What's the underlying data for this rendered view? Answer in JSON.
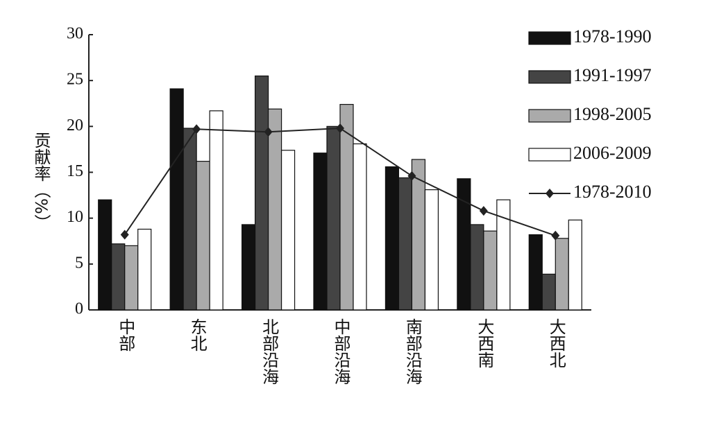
{
  "chart_data": {
    "type": "bar",
    "y_label": "贡献率（%）",
    "categories": [
      "中部",
      "东北",
      "北部沿海",
      "中部沿海",
      "南部沿海",
      "大西南",
      "大西北"
    ],
    "series": [
      {
        "name": "1978-1990",
        "color": "#111111",
        "values": [
          12,
          24.1,
          9.3,
          17.1,
          15.6,
          14.3,
          8.2
        ]
      },
      {
        "name": "1991-1997",
        "color": "#444444",
        "values": [
          7.2,
          19.8,
          25.5,
          20,
          14.4,
          9.3,
          3.9
        ]
      },
      {
        "name": "1998-2005",
        "color": "#aaaaaa",
        "values": [
          7,
          16.2,
          21.9,
          22.4,
          16.4,
          8.6,
          7.8
        ]
      },
      {
        "name": "2006-2009",
        "color": "#ffffff",
        "values": [
          8.8,
          21.7,
          17.4,
          18.1,
          13.1,
          12,
          9.8
        ]
      },
      {
        "name": "1978-2010",
        "color": "#222222",
        "type": "line",
        "values": [
          8.2,
          19.7,
          19.4,
          19.8,
          14.6,
          10.8,
          8.1
        ]
      }
    ],
    "ylim": [
      0,
      30
    ],
    "yticks": [
      0,
      5,
      10,
      15,
      20,
      25,
      30
    ],
    "grid": false,
    "legend": "right"
  }
}
